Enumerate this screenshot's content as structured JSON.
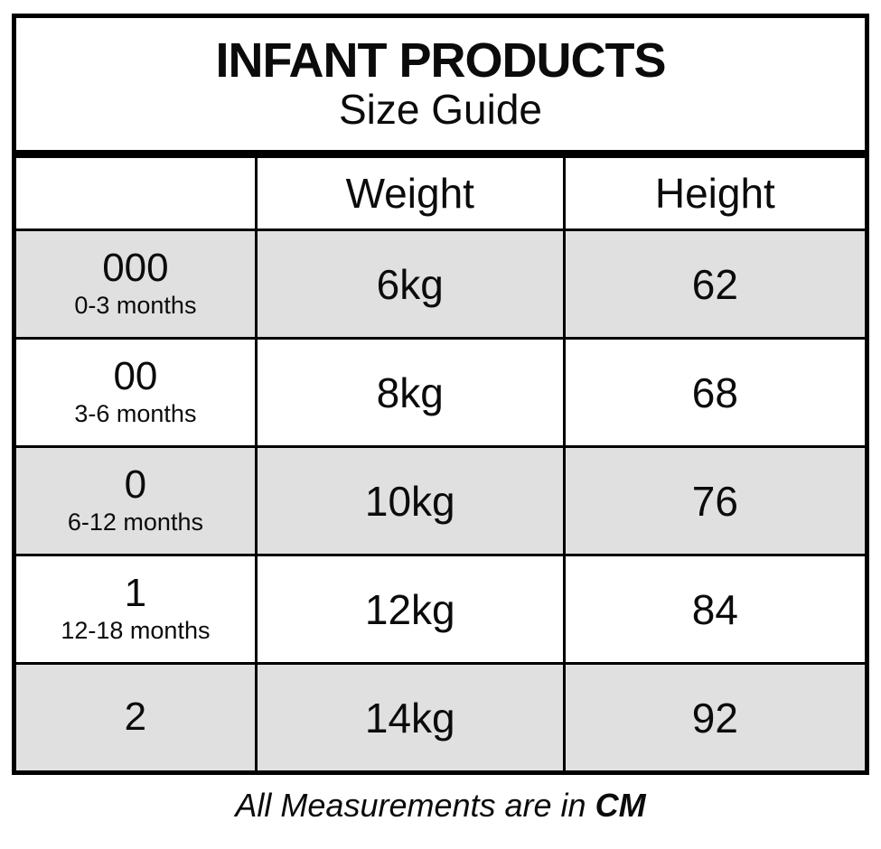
{
  "chart_data": {
    "type": "table",
    "title": "INFANT PRODUCTS",
    "subtitle": "Size Guide",
    "columns": [
      "",
      "Weight",
      "Height"
    ],
    "rows": [
      [
        "000 (0-3 months)",
        "6kg",
        "62"
      ],
      [
        "00 (3-6 months)",
        "8kg",
        "68"
      ],
      [
        "0 (6-12 months)",
        "10kg",
        "76"
      ],
      [
        "1 (12-18 months)",
        "12kg",
        "84"
      ],
      [
        "2",
        "14kg",
        "92"
      ]
    ],
    "note": "All Measurements are in CM",
    "units": "CM",
    "layout": "alternating row shading, first data row shaded"
  },
  "table": {
    "title_line1": "INFANT PRODUCTS",
    "title_line2": "Size Guide",
    "header": {
      "size": "",
      "weight": "Weight",
      "height": "Height"
    },
    "rows": [
      {
        "size": "000",
        "age": "0-3 months",
        "weight": "6kg",
        "height": "62"
      },
      {
        "size": "00",
        "age": "3-6 months",
        "weight": "8kg",
        "height": "68"
      },
      {
        "size": "0",
        "age": "6-12 months",
        "weight": "10kg",
        "height": "76"
      },
      {
        "size": "1",
        "age": "12-18 months",
        "weight": "12kg",
        "height": "84"
      },
      {
        "size": "2",
        "age": "",
        "weight": "14kg",
        "height": "92"
      }
    ]
  },
  "footer": {
    "note_prefix": "All Measurements are in ",
    "note_unit": "CM"
  },
  "colors": {
    "row_shade": "#e0e0e0",
    "line": "#000000",
    "background": "#ffffff",
    "text": "#0b0b0b"
  }
}
